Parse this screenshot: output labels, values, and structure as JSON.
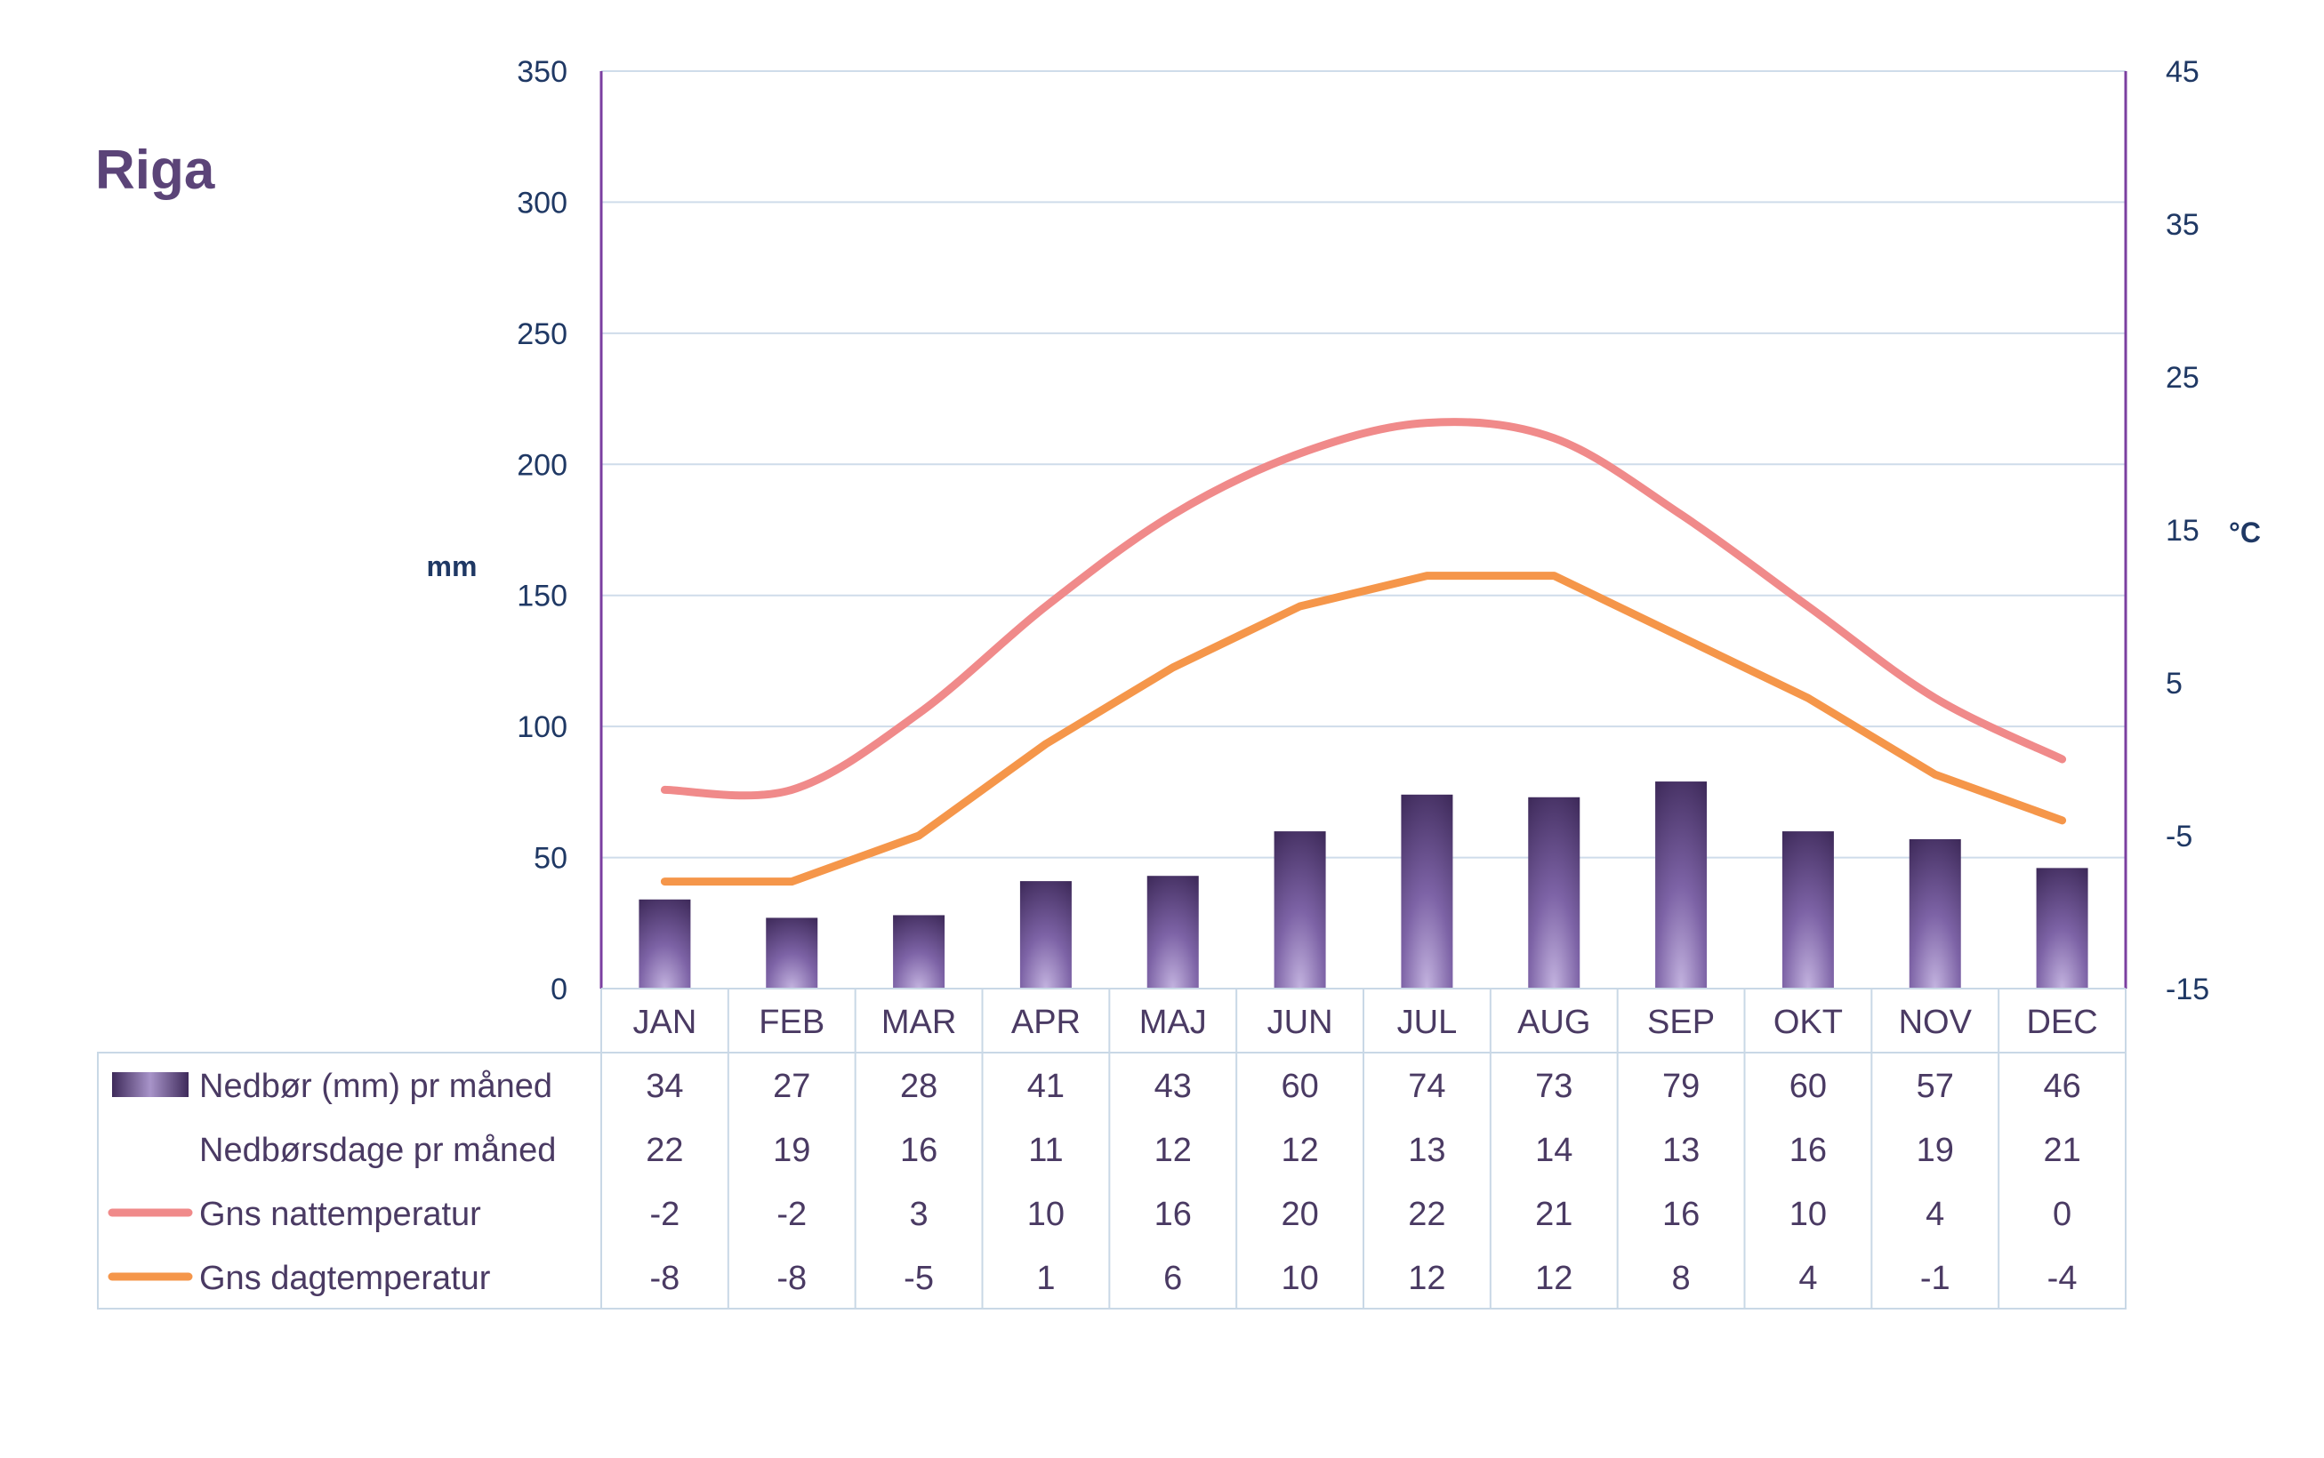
{
  "page": {
    "title": "Riga"
  },
  "chart_data": {
    "type": "bar+line",
    "title": "Riga",
    "categories": [
      "JAN",
      "FEB",
      "MAR",
      "APR",
      "MAJ",
      "JUN",
      "JUL",
      "AUG",
      "SEP",
      "OKT",
      "NOV",
      "DEC"
    ],
    "y_left": {
      "label": "mm",
      "min": 0,
      "max": 350,
      "ticks": [
        0,
        50,
        100,
        150,
        200,
        250,
        300,
        350
      ]
    },
    "y_right": {
      "label": "°C",
      "min": -15,
      "max": 45,
      "ticks": [
        -15,
        -5,
        5,
        15,
        25,
        35,
        45
      ]
    },
    "grid": true,
    "legend": "table-below",
    "series": [
      {
        "name": "Nedbør (mm) pr måned",
        "type": "bar",
        "axis": "left",
        "color": "#5b4478",
        "values": [
          34,
          27,
          28,
          41,
          43,
          60,
          74,
          73,
          79,
          60,
          57,
          46
        ]
      },
      {
        "name": "Nedbørsdage pr måned",
        "type": "table",
        "axis": "none",
        "values": [
          22,
          19,
          16,
          11,
          12,
          12,
          13,
          14,
          13,
          16,
          19,
          21
        ]
      },
      {
        "name": "Gns nattemperatur",
        "type": "line",
        "axis": "right",
        "color": "#f08a8a",
        "values": [
          -2,
          -2,
          3,
          10,
          16,
          20,
          22,
          21,
          16,
          10,
          4,
          0
        ]
      },
      {
        "name": "Gns dagtemperatur",
        "type": "line",
        "axis": "right",
        "color": "#f5964a",
        "values": [
          -8,
          -8,
          -5,
          1,
          6,
          10,
          12,
          12,
          8,
          4,
          -1,
          -4
        ]
      }
    ]
  }
}
